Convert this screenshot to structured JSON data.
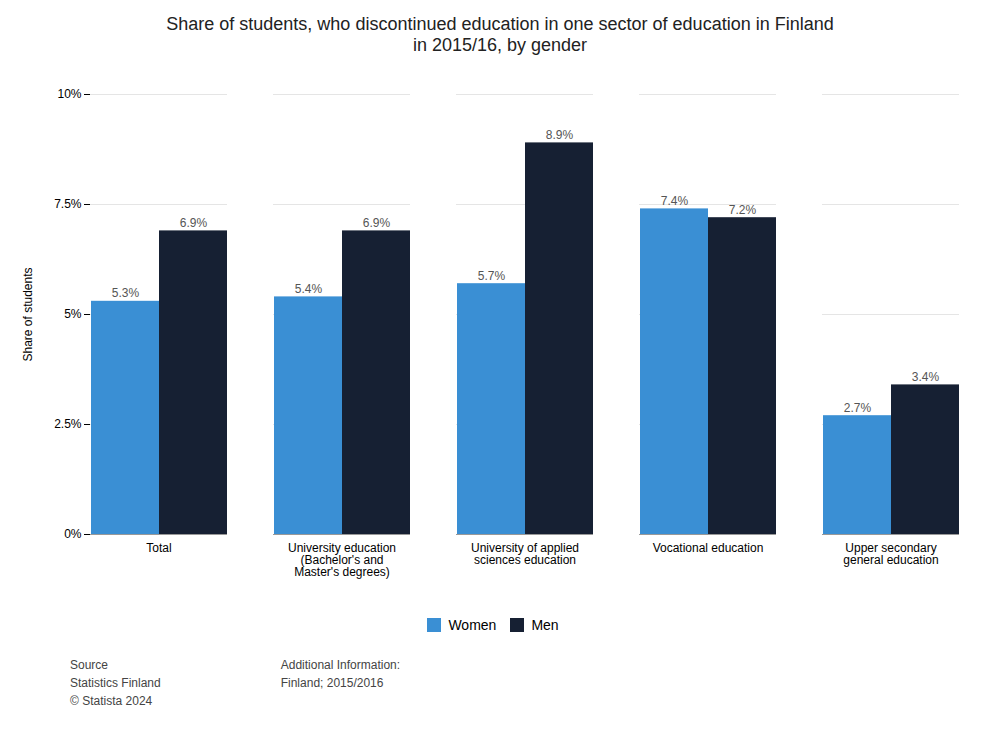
{
  "chart_data": {
    "type": "bar",
    "title": "Share of students, who discontinued education in one sector of education in Finland\nin 2015/16, by gender",
    "categories": [
      "Total",
      "University education\n(Bachelor's and\nMaster's degrees)",
      "University of applied\nsciences education",
      "Vocational education",
      "Upper secondary\ngeneral education"
    ],
    "series": [
      {
        "name": "Women",
        "color": "#3a8fd4",
        "values": [
          5.3,
          5.4,
          5.7,
          7.4,
          2.7
        ],
        "value_labels": [
          "5.3%",
          "5.4%",
          "5.7%",
          "7.4%",
          "2.7%"
        ]
      },
      {
        "name": "Men",
        "color": "#162033",
        "values": [
          6.9,
          6.9,
          8.9,
          7.2,
          3.4
        ],
        "value_labels": [
          "6.9%",
          "6.9%",
          "8.9%",
          "7.2%",
          "3.4%"
        ]
      }
    ],
    "ylabel": "Share of students",
    "ylim": [
      0,
      10
    ],
    "yticks": [
      {
        "value": 0,
        "label": "0%"
      },
      {
        "value": 2.5,
        "label": "2.5%"
      },
      {
        "value": 5.0,
        "label": "5%"
      },
      {
        "value": 7.5,
        "label": "7.5%"
      },
      {
        "value": 10.0,
        "label": "10%"
      }
    ],
    "grid": true,
    "legend": "bottom",
    "data_labels": true,
    "annotations": [
      "Source\nStatistics Finland\n© Statista 2024",
      "Additional Information:\nFinland; 2015/2016"
    ]
  }
}
